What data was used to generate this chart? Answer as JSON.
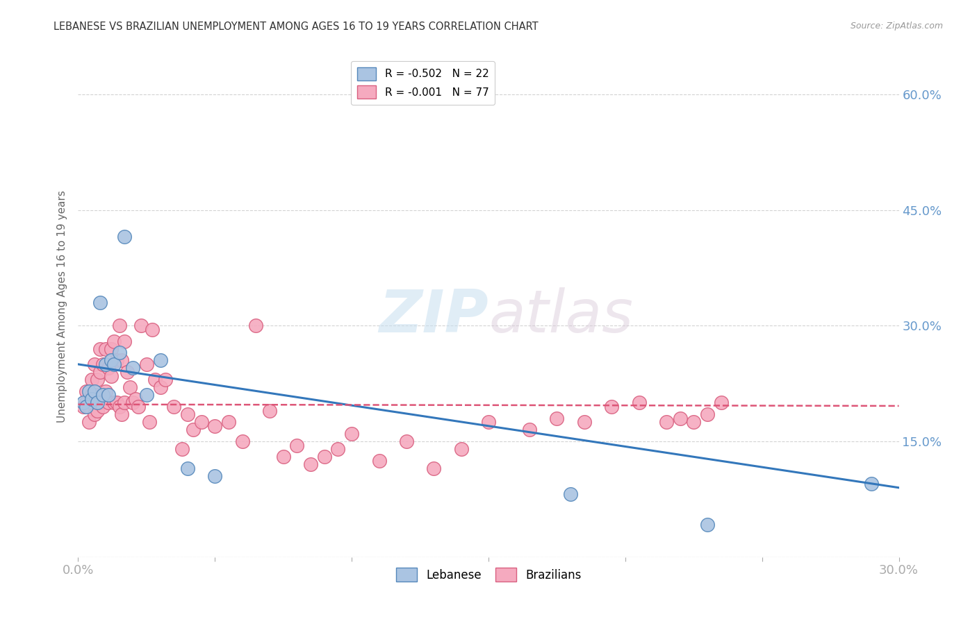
{
  "title": "LEBANESE VS BRAZILIAN UNEMPLOYMENT AMONG AGES 16 TO 19 YEARS CORRELATION CHART",
  "source": "Source: ZipAtlas.com",
  "ylabel": "Unemployment Among Ages 16 to 19 years",
  "xlim": [
    0.0,
    0.3
  ],
  "ylim": [
    0.0,
    0.65
  ],
  "xticks": [
    0.0,
    0.05,
    0.1,
    0.15,
    0.2,
    0.25,
    0.3
  ],
  "xtick_labels": [
    "0.0%",
    "",
    "",
    "",
    "",
    "",
    "30.0%"
  ],
  "yticks": [
    0.0,
    0.15,
    0.3,
    0.45,
    0.6
  ],
  "ytick_labels": [
    "",
    "15.0%",
    "30.0%",
    "45.0%",
    "60.0%"
  ],
  "legend_entries": [
    {
      "label": "R = -0.502   N = 22"
    },
    {
      "label": "R = -0.001   N = 77"
    }
  ],
  "lebanese_color": "#aac4e2",
  "lebanese_edge": "#5588bb",
  "brazilian_color": "#f5aabf",
  "brazilian_edge": "#d96080",
  "lebanese_x": [
    0.002,
    0.003,
    0.004,
    0.005,
    0.006,
    0.007,
    0.008,
    0.009,
    0.01,
    0.011,
    0.012,
    0.013,
    0.015,
    0.017,
    0.02,
    0.025,
    0.03,
    0.04,
    0.05,
    0.18,
    0.23,
    0.29
  ],
  "lebanese_y": [
    0.2,
    0.195,
    0.215,
    0.205,
    0.215,
    0.2,
    0.33,
    0.21,
    0.25,
    0.21,
    0.255,
    0.25,
    0.265,
    0.415,
    0.245,
    0.21,
    0.255,
    0.115,
    0.105,
    0.082,
    0.042,
    0.095
  ],
  "brazilian_x": [
    0.002,
    0.003,
    0.003,
    0.004,
    0.004,
    0.005,
    0.005,
    0.005,
    0.006,
    0.006,
    0.007,
    0.007,
    0.007,
    0.008,
    0.008,
    0.008,
    0.009,
    0.009,
    0.01,
    0.01,
    0.011,
    0.011,
    0.012,
    0.012,
    0.013,
    0.013,
    0.014,
    0.014,
    0.015,
    0.015,
    0.016,
    0.016,
    0.017,
    0.017,
    0.018,
    0.019,
    0.02,
    0.021,
    0.022,
    0.023,
    0.025,
    0.026,
    0.027,
    0.028,
    0.03,
    0.032,
    0.035,
    0.038,
    0.04,
    0.042,
    0.045,
    0.05,
    0.055,
    0.06,
    0.065,
    0.07,
    0.075,
    0.08,
    0.085,
    0.09,
    0.095,
    0.1,
    0.11,
    0.12,
    0.13,
    0.14,
    0.15,
    0.165,
    0.175,
    0.185,
    0.195,
    0.205,
    0.215,
    0.22,
    0.225,
    0.23,
    0.235
  ],
  "brazilian_y": [
    0.195,
    0.2,
    0.215,
    0.175,
    0.195,
    0.2,
    0.21,
    0.23,
    0.185,
    0.25,
    0.19,
    0.21,
    0.23,
    0.2,
    0.24,
    0.27,
    0.195,
    0.25,
    0.215,
    0.27,
    0.2,
    0.245,
    0.235,
    0.27,
    0.2,
    0.28,
    0.2,
    0.255,
    0.195,
    0.3,
    0.185,
    0.255,
    0.2,
    0.28,
    0.24,
    0.22,
    0.2,
    0.205,
    0.195,
    0.3,
    0.25,
    0.175,
    0.295,
    0.23,
    0.22,
    0.23,
    0.195,
    0.14,
    0.185,
    0.165,
    0.175,
    0.17,
    0.175,
    0.15,
    0.3,
    0.19,
    0.13,
    0.145,
    0.12,
    0.13,
    0.14,
    0.16,
    0.125,
    0.15,
    0.115,
    0.14,
    0.175,
    0.165,
    0.18,
    0.175,
    0.195,
    0.2,
    0.175,
    0.18,
    0.175,
    0.185,
    0.2
  ],
  "leb_trendline_x": [
    0.0,
    0.3
  ],
  "leb_trendline_y": [
    0.25,
    0.09
  ],
  "braz_trendline_x": [
    0.0,
    0.3
  ],
  "braz_trendline_y": [
    0.198,
    0.196
  ],
  "title_color": "#333333",
  "axis_color": "#6699cc",
  "grid_color": "#c8c8c8",
  "watermark_zip": "ZIP",
  "watermark_atlas": "atlas",
  "background_color": "#ffffff"
}
